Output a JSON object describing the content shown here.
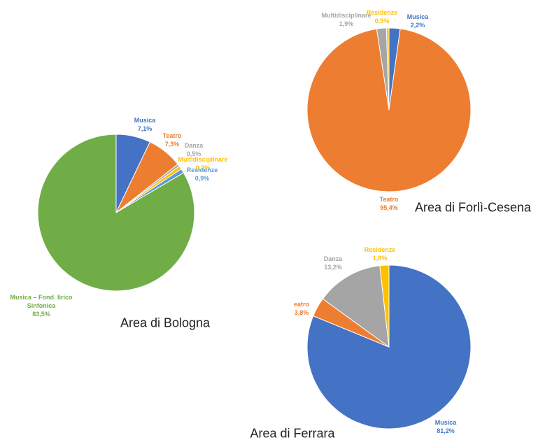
{
  "chart_data": [
    {
      "type": "pie",
      "title": "Area di Bologna",
      "categories": [
        "Musica",
        "Teatro",
        "Danza",
        "Multidisciplinare",
        "Residenze",
        "Musica – Fond. lirico Sinfonica"
      ],
      "values": [
        7.1,
        7.3,
        0.5,
        0.7,
        0.9,
        83.5
      ],
      "value_labels": [
        "7,1%",
        "7,3%",
        "0,5%",
        "0,7%",
        "0,9%",
        "83,5%"
      ],
      "colors": [
        "#4472c4",
        "#ed7d31",
        "#a5a5a5",
        "#ffc000",
        "#5b9bd5",
        "#70ad47"
      ]
    },
    {
      "type": "pie",
      "title": "Area di Forlì-Cesena",
      "categories": [
        "Musica",
        "Teatro",
        "Multidisciplinare",
        "Residenze"
      ],
      "values": [
        2.2,
        95.4,
        1.9,
        0.5
      ],
      "value_labels": [
        "2,2%",
        "95,4%",
        "1,9%",
        "0,5%"
      ],
      "colors": [
        "#4472c4",
        "#ed7d31",
        "#a5a5a5",
        "#ffc000"
      ]
    },
    {
      "type": "pie",
      "title": "Area di Ferrara",
      "categories": [
        "Musica",
        "eatro",
        "Danza",
        "Residenze"
      ],
      "values": [
        81.2,
        3.8,
        13.2,
        1.8
      ],
      "value_labels": [
        "81,2%",
        "3,8%",
        "13,2%",
        "1,8%"
      ],
      "colors": [
        "#4472c4",
        "#ed7d31",
        "#a5a5a5",
        "#ffc000"
      ]
    }
  ]
}
